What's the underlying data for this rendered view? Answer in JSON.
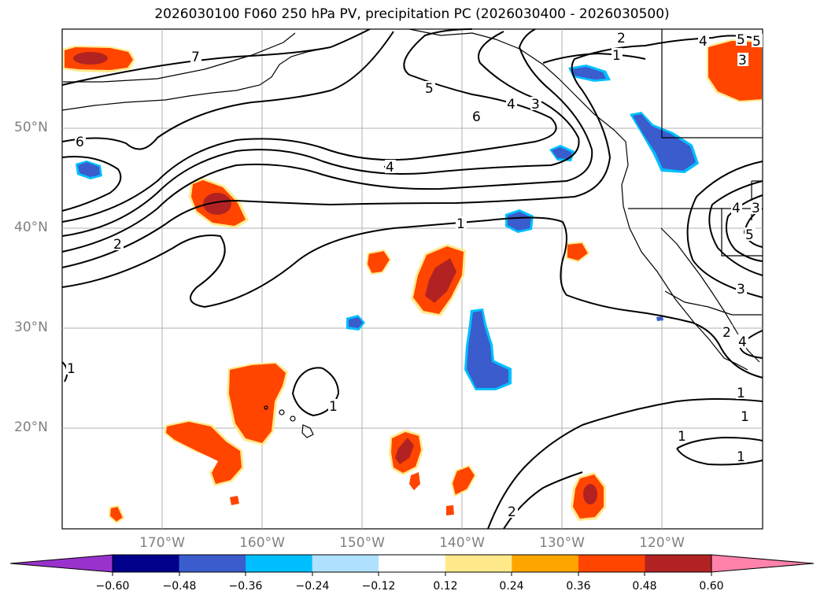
{
  "title": "2026030100 F060 250 hPa PV, precipitation PC (2026030400 - 2026030500)",
  "lat_labels": [
    "50°N",
    "40°N",
    "30°N",
    "20°N"
  ],
  "lon_labels": [
    "170°W",
    "160°W",
    "150°W",
    "140°W",
    "130°W",
    "120°W"
  ],
  "contour_labels": [
    "7",
    "6",
    "5",
    "4",
    "3",
    "2",
    "1",
    "6",
    "4",
    "2",
    "1",
    "1",
    "1",
    "5",
    "4",
    "3",
    "2",
    "1",
    "1",
    "2",
    "3",
    "4",
    "5",
    "4",
    "5",
    "3",
    "1",
    "1"
  ],
  "colorbar": {
    "ticks": [
      "−0.60",
      "−0.48",
      "−0.36",
      "−0.24",
      "−0.12",
      "0.12",
      "0.24",
      "0.36",
      "0.48",
      "0.60"
    ],
    "colors": [
      "#9932cc",
      "#00008b",
      "#3a5ccc",
      "#00bfff",
      "#b0e2ff",
      "#ffffff",
      "#ffe98a",
      "#ffa500",
      "#ff4500",
      "#b22222",
      "#ff82ab"
    ]
  },
  "legend_colors": {
    "neg_strong": "#3a5ccc",
    "neg_light": "#00bfff",
    "pos_mid": "#ff4500",
    "pos_strong": "#b22222",
    "pos_edge": "#ffe98a"
  }
}
